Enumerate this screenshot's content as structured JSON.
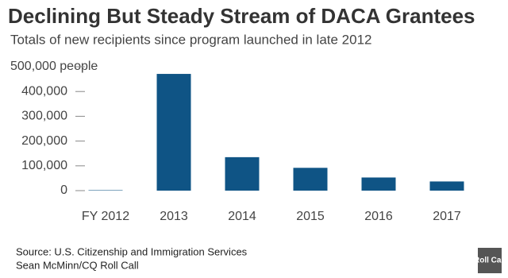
{
  "chart_data": {
    "type": "bar",
    "title": "Declining But Steady Stream of DACA Grantees",
    "subtitle": "Totals of new recipients since program launched in late 2012",
    "categories": [
      "FY 2012",
      "2013",
      "2014",
      "2015",
      "2016",
      "2017"
    ],
    "values": [
      1700,
      471000,
      135000,
      92000,
      53000,
      37000
    ],
    "color": "#0f5485",
    "ylim": [
      0,
      500000
    ],
    "yticks": [
      0,
      {
        "value": 100000,
        "label": "100,000"
      },
      {
        "value": 200000,
        "label": "200,000"
      },
      {
        "value": 300000,
        "label": "300,000"
      },
      {
        "value": 400000,
        "label": "400,000"
      },
      {
        "value": 500000,
        "label": "500,000 people"
      }
    ],
    "source": "Source: U.S. Citizenship and Immigration Services",
    "credit": "Sean McMinn/CQ Roll Call",
    "logo": "Roll Call"
  }
}
